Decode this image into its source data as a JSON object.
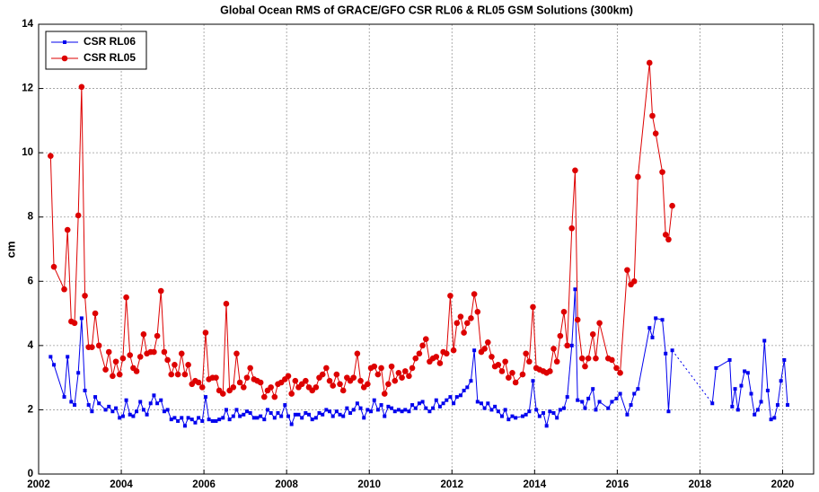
{
  "chart_data": {
    "type": "line",
    "title": "Global Ocean RMS of GRACE/GFO CSR RL06 & RL05 GSM Solutions (300km)",
    "y_label": "cm",
    "xlim": [
      2002,
      2020.75
    ],
    "xticks": [
      2002,
      2004,
      2006,
      2008,
      2010,
      2012,
      2014,
      2016,
      2018,
      2020
    ],
    "ylim": [
      0,
      14
    ],
    "yticks": [
      0,
      2,
      4,
      6,
      8,
      10,
      12,
      14
    ],
    "grid": true,
    "legend": "upper left",
    "series": [
      {
        "name": "CSR RL06",
        "color": "#0000ee",
        "marker": "square",
        "x": [
          2002.29,
          2002.37,
          2002.62,
          2002.7,
          2002.79,
          2002.87,
          2002.96,
          2003.04,
          2003.12,
          2003.21,
          2003.29,
          2003.37,
          2003.46,
          2003.62,
          2003.7,
          2003.79,
          2003.87,
          2003.96,
          2004.04,
          2004.12,
          2004.21,
          2004.29,
          2004.37,
          2004.46,
          2004.54,
          2004.62,
          2004.71,
          2004.79,
          2004.87,
          2004.96,
          2005.04,
          2005.12,
          2005.21,
          2005.29,
          2005.37,
          2005.46,
          2005.54,
          2005.62,
          2005.71,
          2005.79,
          2005.87,
          2005.96,
          2006.04,
          2006.12,
          2006.21,
          2006.29,
          2006.37,
          2006.46,
          2006.54,
          2006.62,
          2006.71,
          2006.79,
          2006.87,
          2006.96,
          2007.04,
          2007.12,
          2007.21,
          2007.29,
          2007.37,
          2007.46,
          2007.54,
          2007.62,
          2007.71,
          2007.79,
          2007.87,
          2007.96,
          2008.04,
          2008.12,
          2008.21,
          2008.29,
          2008.37,
          2008.46,
          2008.54,
          2008.62,
          2008.71,
          2008.79,
          2008.87,
          2008.96,
          2009.04,
          2009.12,
          2009.21,
          2009.29,
          2009.37,
          2009.46,
          2009.54,
          2009.62,
          2009.71,
          2009.79,
          2009.87,
          2009.96,
          2010.04,
          2010.12,
          2010.21,
          2010.29,
          2010.37,
          2010.46,
          2010.54,
          2010.62,
          2010.71,
          2010.79,
          2010.87,
          2010.96,
          2011.04,
          2011.12,
          2011.21,
          2011.29,
          2011.37,
          2011.46,
          2011.54,
          2011.62,
          2011.71,
          2011.79,
          2011.87,
          2011.96,
          2012.04,
          2012.12,
          2012.21,
          2012.29,
          2012.37,
          2012.46,
          2012.54,
          2012.62,
          2012.71,
          2012.79,
          2012.87,
          2012.96,
          2013.04,
          2013.12,
          2013.21,
          2013.29,
          2013.37,
          2013.46,
          2013.54,
          2013.71,
          2013.79,
          2013.87,
          2013.96,
          2014.04,
          2014.12,
          2014.21,
          2014.29,
          2014.37,
          2014.46,
          2014.54,
          2014.62,
          2014.71,
          2014.79,
          2014.9,
          2014.98,
          2015.04,
          2015.15,
          2015.22,
          2015.3,
          2015.41,
          2015.48,
          2015.57,
          2015.78,
          2015.87,
          2015.98,
          2016.07,
          2016.24,
          2016.33,
          2016.41,
          2016.5,
          2016.78,
          2016.85,
          2016.93,
          2017.09,
          2017.17,
          2017.24,
          2017.33,
          2018.3,
          2018.39,
          2018.72,
          2018.78,
          2018.85,
          2018.92,
          2019.0,
          2019.08,
          2019.16,
          2019.24,
          2019.32,
          2019.4,
          2019.48,
          2019.56,
          2019.64,
          2019.72,
          2019.8,
          2019.88,
          2019.96,
          2020.04,
          2020.12
        ],
        "values": [
          3.65,
          3.4,
          2.4,
          3.65,
          2.25,
          2.15,
          3.15,
          4.85,
          2.6,
          2.15,
          1.95,
          2.4,
          2.2,
          2.0,
          2.1,
          1.95,
          2.05,
          1.75,
          1.8,
          2.3,
          1.85,
          1.8,
          1.95,
          2.25,
          2.0,
          1.85,
          2.2,
          2.45,
          2.2,
          2.3,
          1.95,
          2.0,
          1.7,
          1.75,
          1.65,
          1.75,
          1.5,
          1.75,
          1.7,
          1.6,
          1.75,
          1.65,
          2.4,
          1.7,
          1.65,
          1.65,
          1.7,
          1.75,
          2.0,
          1.7,
          1.8,
          2.0,
          1.8,
          1.85,
          1.95,
          1.9,
          1.75,
          1.75,
          1.8,
          1.7,
          2.0,
          1.9,
          1.75,
          1.9,
          1.8,
          2.15,
          1.8,
          1.55,
          1.85,
          1.85,
          1.75,
          1.9,
          1.85,
          1.7,
          1.75,
          1.9,
          1.85,
          2.0,
          1.95,
          1.8,
          1.95,
          1.85,
          1.8,
          2.05,
          1.9,
          2.0,
          2.2,
          2.05,
          1.75,
          2.0,
          1.95,
          2.3,
          2.0,
          2.15,
          1.8,
          2.1,
          2.05,
          1.95,
          2.0,
          1.95,
          2.0,
          1.95,
          2.15,
          2.05,
          2.2,
          2.25,
          2.05,
          1.95,
          2.05,
          2.3,
          2.1,
          2.2,
          2.3,
          2.4,
          2.2,
          2.4,
          2.45,
          2.6,
          2.7,
          2.9,
          3.85,
          2.25,
          2.2,
          2.05,
          2.2,
          2.0,
          2.1,
          1.95,
          1.8,
          2.0,
          1.7,
          1.8,
          1.75,
          1.8,
          1.85,
          1.95,
          2.9,
          2.0,
          1.8,
          1.9,
          1.5,
          1.95,
          1.9,
          1.75,
          2.0,
          2.05,
          2.4,
          4.0,
          5.75,
          2.3,
          2.25,
          2.05,
          2.35,
          2.65,
          2.0,
          2.25,
          2.05,
          2.25,
          2.35,
          2.5,
          1.85,
          2.15,
          2.5,
          2.65,
          4.55,
          4.25,
          4.85,
          4.8,
          3.75,
          1.95,
          3.85,
          2.2,
          3.3,
          3.55,
          2.1,
          2.65,
          2.0,
          2.75,
          3.2,
          3.15,
          2.5,
          1.85,
          2.0,
          2.25,
          4.15,
          2.6,
          1.7,
          1.75,
          2.15,
          2.9,
          3.55,
          2.15
        ]
      },
      {
        "name": "CSR RL05",
        "color": "#dd0000",
        "marker": "circle",
        "x": [
          2002.29,
          2002.37,
          2002.62,
          2002.7,
          2002.79,
          2002.87,
          2002.96,
          2003.04,
          2003.12,
          2003.21,
          2003.29,
          2003.37,
          2003.46,
          2003.62,
          2003.7,
          2003.79,
          2003.87,
          2003.96,
          2004.04,
          2004.12,
          2004.21,
          2004.29,
          2004.37,
          2004.46,
          2004.54,
          2004.62,
          2004.71,
          2004.79,
          2004.87,
          2004.96,
          2005.04,
          2005.12,
          2005.21,
          2005.29,
          2005.37,
          2005.46,
          2005.54,
          2005.62,
          2005.71,
          2005.79,
          2005.87,
          2005.96,
          2006.04,
          2006.12,
          2006.21,
          2006.29,
          2006.37,
          2006.46,
          2006.54,
          2006.62,
          2006.71,
          2006.79,
          2006.87,
          2006.96,
          2007.04,
          2007.12,
          2007.21,
          2007.29,
          2007.37,
          2007.46,
          2007.54,
          2007.62,
          2007.71,
          2007.79,
          2007.87,
          2007.96,
          2008.04,
          2008.12,
          2008.21,
          2008.29,
          2008.37,
          2008.46,
          2008.54,
          2008.62,
          2008.71,
          2008.79,
          2008.87,
          2008.96,
          2009.04,
          2009.12,
          2009.21,
          2009.29,
          2009.37,
          2009.46,
          2009.54,
          2009.62,
          2009.71,
          2009.79,
          2009.87,
          2009.96,
          2010.04,
          2010.12,
          2010.21,
          2010.29,
          2010.37,
          2010.46,
          2010.54,
          2010.62,
          2010.71,
          2010.79,
          2010.87,
          2010.96,
          2011.04,
          2011.12,
          2011.21,
          2011.29,
          2011.37,
          2011.46,
          2011.54,
          2011.62,
          2011.71,
          2011.79,
          2011.87,
          2011.96,
          2012.04,
          2012.12,
          2012.21,
          2012.29,
          2012.37,
          2012.46,
          2012.54,
          2012.62,
          2012.71,
          2012.79,
          2012.87,
          2012.96,
          2013.04,
          2013.12,
          2013.21,
          2013.29,
          2013.37,
          2013.46,
          2013.54,
          2013.71,
          2013.79,
          2013.87,
          2013.96,
          2014.04,
          2014.12,
          2014.21,
          2014.29,
          2014.37,
          2014.46,
          2014.54,
          2014.62,
          2014.71,
          2014.79,
          2014.9,
          2014.98,
          2015.04,
          2015.15,
          2015.22,
          2015.3,
          2015.41,
          2015.48,
          2015.57,
          2015.78,
          2015.87,
          2015.98,
          2016.07,
          2016.24,
          2016.33,
          2016.41,
          2016.5,
          2016.78,
          2016.85,
          2016.93,
          2017.09,
          2017.17,
          2017.24,
          2017.33
        ],
        "values": [
          9.9,
          6.45,
          5.75,
          7.6,
          4.75,
          4.7,
          8.05,
          12.05,
          5.55,
          3.95,
          3.95,
          5.0,
          4.0,
          3.25,
          3.8,
          3.05,
          3.5,
          3.1,
          3.6,
          5.5,
          3.7,
          3.3,
          3.2,
          3.65,
          4.35,
          3.75,
          3.8,
          3.8,
          4.3,
          5.7,
          3.8,
          3.55,
          3.1,
          3.4,
          3.1,
          3.75,
          3.1,
          3.4,
          2.8,
          2.9,
          2.85,
          2.7,
          4.4,
          2.95,
          3.0,
          3.0,
          2.6,
          2.5,
          5.3,
          2.6,
          2.7,
          3.75,
          2.85,
          2.7,
          3.0,
          3.3,
          2.95,
          2.9,
          2.85,
          2.4,
          2.6,
          2.7,
          2.4,
          2.8,
          2.85,
          2.95,
          3.05,
          2.5,
          2.9,
          2.7,
          2.8,
          2.9,
          2.7,
          2.6,
          2.7,
          3.0,
          3.1,
          3.3,
          2.9,
          2.75,
          3.1,
          2.8,
          2.6,
          3.0,
          2.9,
          3.0,
          3.75,
          2.9,
          2.7,
          2.8,
          3.3,
          3.35,
          3.1,
          3.3,
          2.5,
          2.8,
          3.35,
          2.9,
          3.15,
          3.0,
          3.2,
          3.05,
          3.3,
          3.6,
          3.75,
          4.0,
          4.2,
          3.5,
          3.6,
          3.65,
          3.45,
          3.8,
          3.75,
          5.55,
          3.85,
          4.7,
          4.9,
          4.4,
          4.7,
          4.85,
          5.6,
          5.05,
          3.8,
          3.9,
          4.1,
          3.65,
          3.35,
          3.4,
          3.2,
          3.5,
          3.0,
          3.15,
          2.85,
          3.1,
          3.75,
          3.5,
          5.2,
          3.3,
          3.25,
          3.2,
          3.15,
          3.2,
          3.9,
          3.5,
          4.3,
          5.05,
          4.0,
          7.65,
          9.45,
          4.8,
          3.6,
          3.35,
          3.6,
          4.35,
          3.6,
          4.7,
          3.6,
          3.55,
          3.3,
          3.15,
          6.35,
          5.9,
          6.0,
          9.25,
          12.8,
          11.15,
          10.6,
          9.4,
          7.45,
          7.3,
          8.35
        ]
      }
    ]
  }
}
